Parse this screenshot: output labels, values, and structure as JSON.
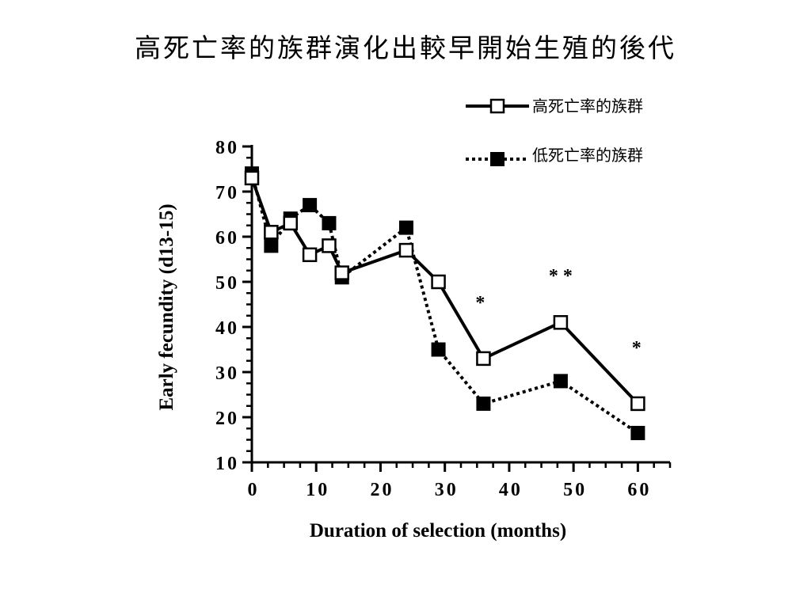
{
  "slide": {
    "title": "高死亡率的族群演化出較早開始生殖的後代"
  },
  "chart_data": {
    "type": "line",
    "xlabel": "Duration of selection (months)",
    "ylabel": "Early fecundity (d13-15)",
    "xlim": [
      0,
      65
    ],
    "ylim": [
      10,
      80
    ],
    "xticks": [
      0,
      10,
      20,
      30,
      40,
      50,
      60
    ],
    "yticks": [
      10,
      20,
      30,
      40,
      50,
      60,
      70,
      80
    ],
    "legend_position": "top-right",
    "series": [
      {
        "name": "高死亡率的族群",
        "style": "solid",
        "marker": "open-square",
        "color": "#000000",
        "x": [
          0,
          3,
          6,
          9,
          12,
          14,
          24,
          29,
          36,
          48,
          60
        ],
        "y": [
          73,
          61,
          63,
          56,
          58,
          52,
          57,
          50,
          33,
          41,
          23
        ]
      },
      {
        "name": "低死亡率的族群",
        "style": "dotted",
        "marker": "filled-square",
        "color": "#000000",
        "x": [
          0,
          3,
          6,
          9,
          12,
          14,
          24,
          29,
          36,
          48,
          60
        ],
        "y": [
          74,
          58,
          64,
          67,
          63,
          51,
          62,
          35,
          23,
          28,
          16.5
        ]
      }
    ],
    "annotations": [
      {
        "text": "*",
        "x": 35.5,
        "y": 44
      },
      {
        "text": "* *",
        "x": 48,
        "y": 50
      },
      {
        "text": "*",
        "x": 59.8,
        "y": 34
      }
    ]
  }
}
